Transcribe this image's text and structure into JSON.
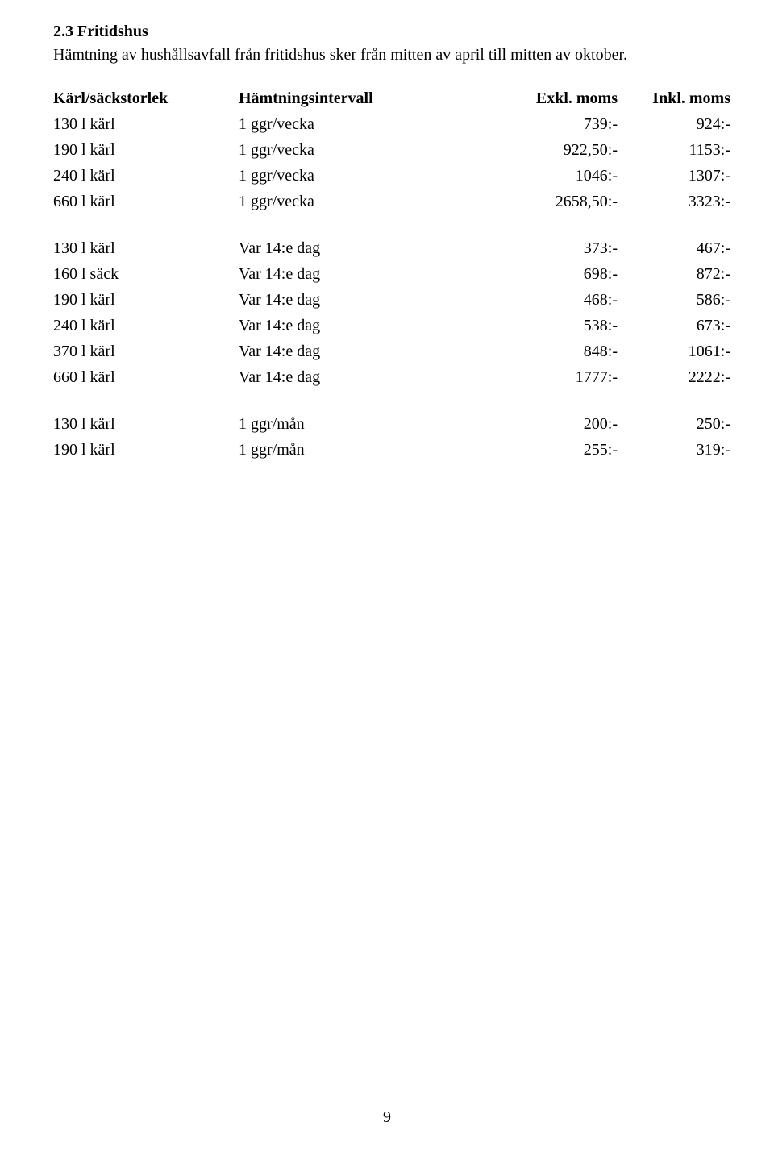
{
  "heading": "2.3 Fritidshus",
  "intro": "Hämtning av hushållsavfall från fritidshus sker från mitten av april till mitten av oktober.",
  "headers": {
    "size": "Kärl/säckstorlek",
    "interval": "Hämtningsintervall",
    "exkl": "Exkl. moms",
    "inkl": "Inkl. moms"
  },
  "block1": [
    {
      "size": "130 l kärl",
      "int": "1 ggr/vecka",
      "exkl": "739:-",
      "inkl": "924:-"
    },
    {
      "size": "190 l kärl",
      "int": "1 ggr/vecka",
      "exkl": "922,50:-",
      "inkl": "1153:-"
    },
    {
      "size": "240 l kärl",
      "int": "1 ggr/vecka",
      "exkl": "1046:-",
      "inkl": "1307:-"
    },
    {
      "size": "660 l kärl",
      "int": "1 ggr/vecka",
      "exkl": "2658,50:-",
      "inkl": "3323:-"
    }
  ],
  "block2": [
    {
      "size": "130 l kärl",
      "int": "Var 14:e dag",
      "exkl": "373:-",
      "inkl": "467:-"
    },
    {
      "size": "160 l säck",
      "int": "Var 14:e dag",
      "exkl": "698:-",
      "inkl": "872:-"
    },
    {
      "size": "190 l kärl",
      "int": "Var 14:e dag",
      "exkl": "468:-",
      "inkl": "586:-"
    },
    {
      "size": "240 l kärl",
      "int": "Var 14:e dag",
      "exkl": "538:-",
      "inkl": "673:-"
    },
    {
      "size": "370 l kärl",
      "int": "Var 14:e dag",
      "exkl": "848:-",
      "inkl": "1061:-"
    },
    {
      "size": "660 l kärl",
      "int": "Var 14:e dag",
      "exkl": "1777:-",
      "inkl": "2222:-"
    }
  ],
  "block3": [
    {
      "size": "130 l kärl",
      "int": "1 ggr/mån",
      "exkl": "200:-",
      "inkl": "250:-"
    },
    {
      "size": "190 l kärl",
      "int": "1 ggr/mån",
      "exkl": "255:-",
      "inkl": "319:-"
    }
  ],
  "page_number": "9",
  "colors": {
    "background": "#ffffff",
    "text": "#000000"
  },
  "typography": {
    "font_family": "Georgia / Times-like serif",
    "body_fontsize_pt": 15,
    "heading_weight": "bold"
  }
}
